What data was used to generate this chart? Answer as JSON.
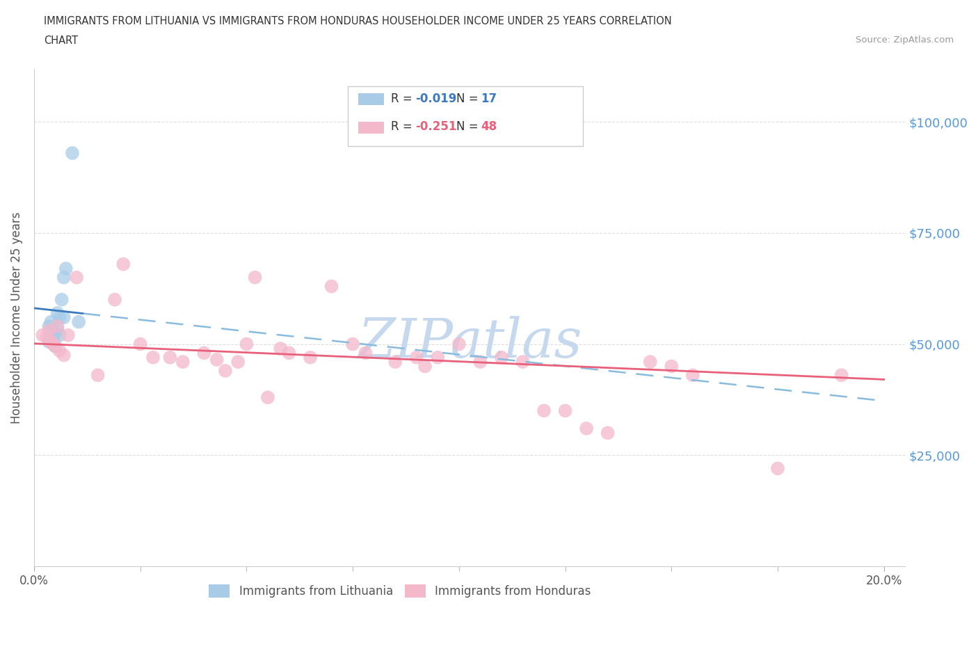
{
  "title_line1": "IMMIGRANTS FROM LITHUANIA VS IMMIGRANTS FROM HONDURAS HOUSEHOLDER INCOME UNDER 25 YEARS CORRELATION",
  "title_line2": "CHART",
  "source_text": "Source: ZipAtlas.com",
  "ylabel": "Householder Income Under 25 years",
  "ytick_labels": [
    "$25,000",
    "$50,000",
    "$75,000",
    "$100,000"
  ],
  "ytick_vals": [
    25000,
    50000,
    75000,
    100000
  ],
  "ylim": [
    0,
    112000
  ],
  "xlim": [
    0,
    20.5
  ],
  "xmin_label": "0.0%",
  "xmax_label": "20.0%",
  "x_minor_ticks": [
    2.5,
    5.0,
    7.5,
    10.0,
    12.5,
    15.0,
    17.5
  ],
  "lithuania_R": -0.019,
  "lithuania_N": 17,
  "honduras_R": -0.251,
  "honduras_N": 48,
  "lithuania_scatter_color": "#a8cce8",
  "honduras_scatter_color": "#f4b8cb",
  "lithuania_line_color": "#3a7abf",
  "honduras_line_color": "#e8607a",
  "dashed_line_color": "#88bbdd",
  "background_color": "#ffffff",
  "grid_color": "#cccccc",
  "grid_style": "--",
  "watermark": "ZIPatlas",
  "watermark_color": "#c5d8ee",
  "legend_label_lithuania": "Immigrants from Lithuania",
  "legend_label_honduras": "Immigrants from Honduras",
  "lith_legend_color": "#a8cce8",
  "hond_legend_color": "#f4b8cb",
  "R_color_lith": "#3a7abf",
  "R_color_hond": "#e8607a",
  "lithuania_x": [
    0.5,
    0.4,
    0.55,
    0.65,
    0.7,
    0.6,
    0.75,
    0.45,
    0.5,
    0.6,
    0.35,
    0.7,
    0.55,
    1.05,
    0.9,
    0.45,
    0.35
  ],
  "lithuania_y": [
    52500,
    55000,
    57000,
    60000,
    65000,
    56000,
    67000,
    50000,
    49500,
    52000,
    54000,
    56000,
    53500,
    55000,
    93000,
    51000,
    50500
  ],
  "honduras_x": [
    0.2,
    0.3,
    0.35,
    0.4,
    0.45,
    0.5,
    0.55,
    0.6,
    0.7,
    0.8,
    1.0,
    1.5,
    1.9,
    2.1,
    2.5,
    2.8,
    3.2,
    3.5,
    4.0,
    4.3,
    4.5,
    4.8,
    5.0,
    5.2,
    5.5,
    5.8,
    6.0,
    6.5,
    7.0,
    7.5,
    7.8,
    8.5,
    9.0,
    9.2,
    9.5,
    10.0,
    10.5,
    11.0,
    11.5,
    12.0,
    12.5,
    13.0,
    13.5,
    14.5,
    15.0,
    15.5,
    17.5,
    19.0
  ],
  "honduras_y": [
    52000,
    51500,
    53000,
    50500,
    50000,
    49500,
    54000,
    48500,
    47500,
    52000,
    65000,
    43000,
    60000,
    68000,
    50000,
    47000,
    47000,
    46000,
    48000,
    46500,
    44000,
    46000,
    50000,
    65000,
    38000,
    49000,
    48000,
    47000,
    63000,
    50000,
    48000,
    46000,
    47000,
    45000,
    47000,
    50000,
    46000,
    47000,
    46000,
    35000,
    35000,
    31000,
    30000,
    46000,
    45000,
    43000,
    22000,
    43000
  ]
}
